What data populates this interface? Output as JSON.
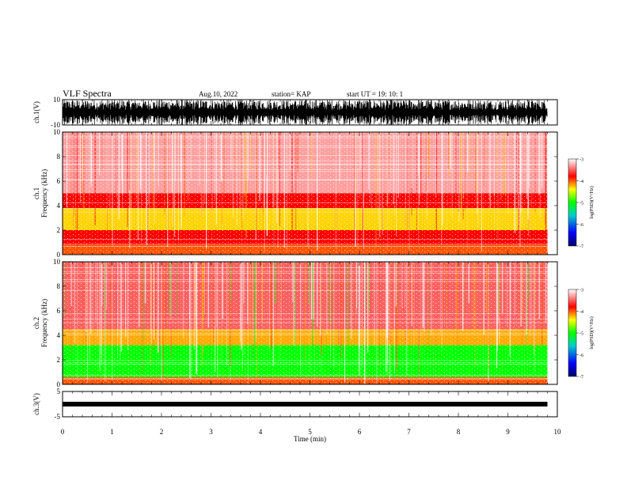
{
  "header": {
    "title": "VLF Spectra",
    "date": "Aug.10, 2022",
    "station": "station= KAP",
    "start": "start  UT  =    19: 10: 1"
  },
  "chart_data": [
    {
      "type": "line",
      "panel": "waveform ch.1",
      "ylabel": "ch.1(V)",
      "ylim": [
        -10,
        10
      ],
      "yticks": [
        "10",
        "-10"
      ],
      "xlim": [
        0,
        10
      ],
      "x_units": "min",
      "data_extent_min": 9.8,
      "description_color": "#000000"
    },
    {
      "type": "heatmap",
      "panel": "spectrogram ch.1",
      "ylabel": "ch.1\nFrequency  (kHz)",
      "ylim": [
        0,
        10
      ],
      "yticks": [
        "0",
        "2",
        "4",
        "6",
        "8",
        "10"
      ],
      "xlim": [
        0,
        10
      ],
      "data_extent_min": 9.8,
      "bands_khz": [
        {
          "from": 0,
          "to": 0.8,
          "log_psd": -4.0
        },
        {
          "from": 0.8,
          "to": 2.0,
          "log_psd": -3.8
        },
        {
          "from": 2.0,
          "to": 3.8,
          "log_psd": -4.3
        },
        {
          "from": 3.8,
          "to": 5.0,
          "log_psd": -3.8
        },
        {
          "from": 5.0,
          "to": 10.0,
          "log_psd": -3.3
        }
      ],
      "colorbar": {
        "label": "log(PSD)(V²/Hz)",
        "range": [
          -7,
          -3
        ],
        "ticks": [
          "-3",
          "-4",
          "-5",
          "-6",
          "-7"
        ]
      }
    },
    {
      "type": "heatmap",
      "panel": "spectrogram ch.2",
      "ylabel": "ch.2\nFrequency  (kHz)",
      "ylim": [
        0,
        10
      ],
      "yticks": [
        "0",
        "2",
        "4",
        "6",
        "8",
        "10"
      ],
      "xlim": [
        0,
        10
      ],
      "data_extent_min": 9.8,
      "bands_khz": [
        {
          "from": 0,
          "to": 0.6,
          "log_psd": -4.0
        },
        {
          "from": 0.6,
          "to": 3.2,
          "log_psd": -5.0
        },
        {
          "from": 3.2,
          "to": 4.5,
          "log_psd": -4.2
        },
        {
          "from": 4.5,
          "to": 10.0,
          "log_psd": -3.5
        }
      ],
      "colorbar": {
        "label": "log(PSD)(V²/Hz)",
        "range": [
          -7,
          -3
        ],
        "ticks": [
          "-3",
          "-4",
          "-5",
          "-6",
          "-7"
        ]
      }
    },
    {
      "type": "line",
      "panel": "waveform ch.3",
      "ylabel": "ch.3(V)",
      "ylim": [
        -5,
        5
      ],
      "yticks": [
        "5",
        "-5"
      ],
      "xlim": [
        0,
        10
      ],
      "level_v": 0,
      "data_extent_min": 9.8
    }
  ],
  "xaxis": {
    "label": "Time  (min)",
    "ticks": [
      "0",
      "1",
      "2",
      "3",
      "4",
      "5",
      "6",
      "7",
      "8",
      "9",
      "10"
    ]
  }
}
